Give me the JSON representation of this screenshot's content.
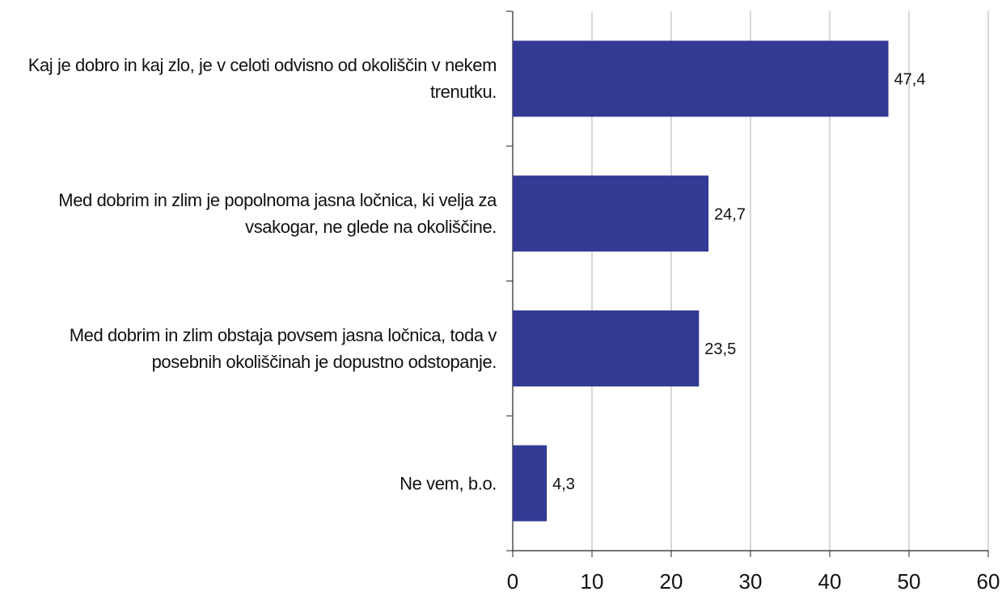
{
  "chart_data": {
    "type": "barh",
    "categories": [
      "Kaj je dobro in kaj zlo, je v celoti odvisno od okoliščin v nekem trenutku.",
      "Med dobrim in zlim je popolnoma jasna ločnica, ki velja za vsakogar, ne glede na okoliščine.",
      "Med dobrim in zlim obstaja povsem jasna ločnica, toda v posebnih okoliščinah je dopustno odstopanje.",
      "Ne vem, b.o."
    ],
    "values": [
      47.4,
      24.7,
      23.5,
      4.3
    ],
    "value_labels": [
      "47,4",
      "24,7",
      "23,5",
      "4,3"
    ],
    "color": "#333a94",
    "xlim": [
      0,
      60
    ],
    "xticks": [
      0,
      10,
      20,
      30,
      40,
      50,
      60
    ],
    "grid": true
  }
}
